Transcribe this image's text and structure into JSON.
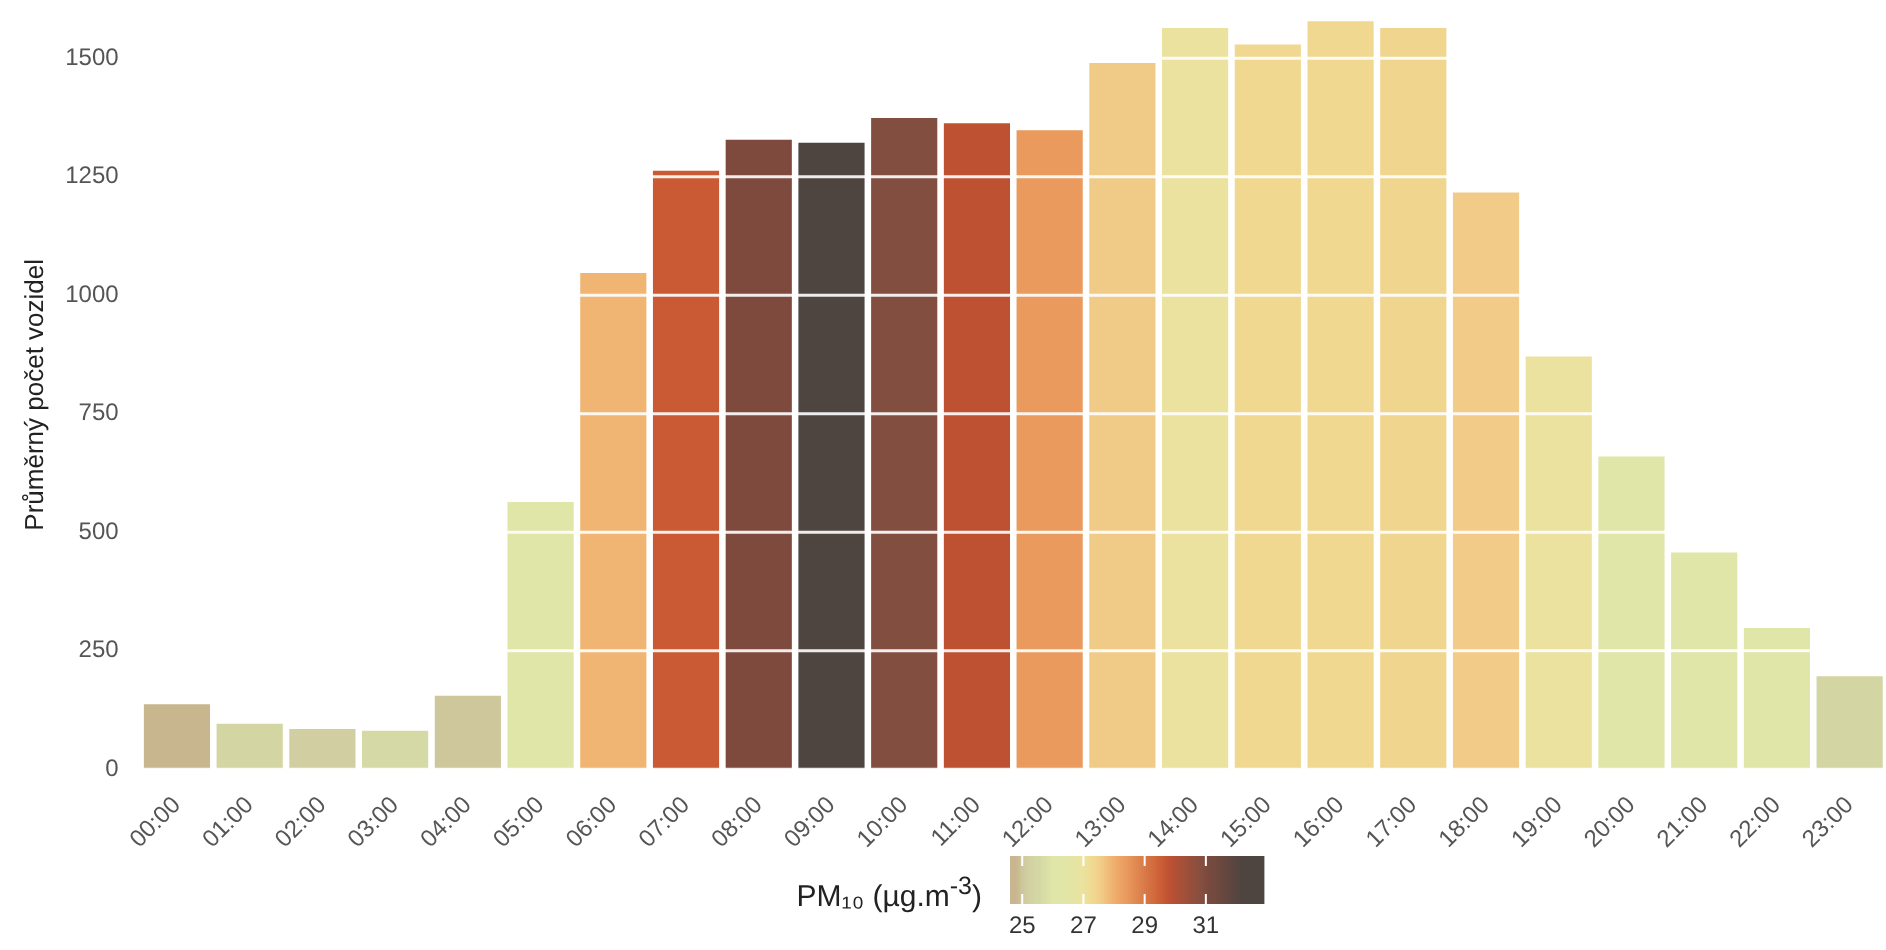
{
  "chart_data": {
    "type": "bar",
    "ylabel": "Průměrný počet vozidel",
    "clabel": "PM₁₀ (µg.m$^{-3}$)",
    "categories": [
      "00:00",
      "01:00",
      "02:00",
      "03:00",
      "04:00",
      "05:00",
      "06:00",
      "07:00",
      "08:00",
      "09:00",
      "10:00",
      "11:00",
      "12:00",
      "13:00",
      "14:00",
      "15:00",
      "16:00",
      "17:00",
      "18:00",
      "19:00",
      "20:00",
      "21:00",
      "22:00",
      "23:00"
    ],
    "values": [
      137,
      96,
      85,
      81,
      155,
      564,
      1047,
      1263,
      1328,
      1322,
      1374,
      1363,
      1348,
      1490,
      1564,
      1529,
      1578,
      1564,
      1217,
      871,
      660,
      457,
      298,
      196
    ],
    "colors": [
      "#c8b68f",
      "#d3d5a3",
      "#d1cfa1",
      "#d5d9a5",
      "#cfc79c",
      "#dfe6a8",
      "#f0b572",
      "#c95a33",
      "#7e4a3e",
      "#4e4440",
      "#824e40",
      "#bd5132",
      "#e99a5c",
      "#f0cb87",
      "#ebe29f",
      "#f0d891",
      "#f0d891",
      "#f0d58f",
      "#f1cb87",
      "#ebe29f",
      "#dfe6a8",
      "#dfe6a8",
      "#dfe6a8",
      "#d3d5a3"
    ],
    "cvalues": [
      24.8,
      25.4,
      25.2,
      25.5,
      25.0,
      26.0,
      27.9,
      29.6,
      31.0,
      32.2,
      30.9,
      29.8,
      28.4,
      27.6,
      27.0,
      27.3,
      27.3,
      27.4,
      27.6,
      27.0,
      26.2,
      26.3,
      26.2,
      25.5
    ],
    "clim": [
      24.6,
      32.9
    ],
    "cticks": [
      25,
      27,
      29,
      31
    ],
    "ylim": [
      0,
      1580
    ],
    "yticks": [
      0,
      250,
      500,
      750,
      1000,
      1250,
      1500
    ],
    "grid": "y",
    "legend": false
  }
}
